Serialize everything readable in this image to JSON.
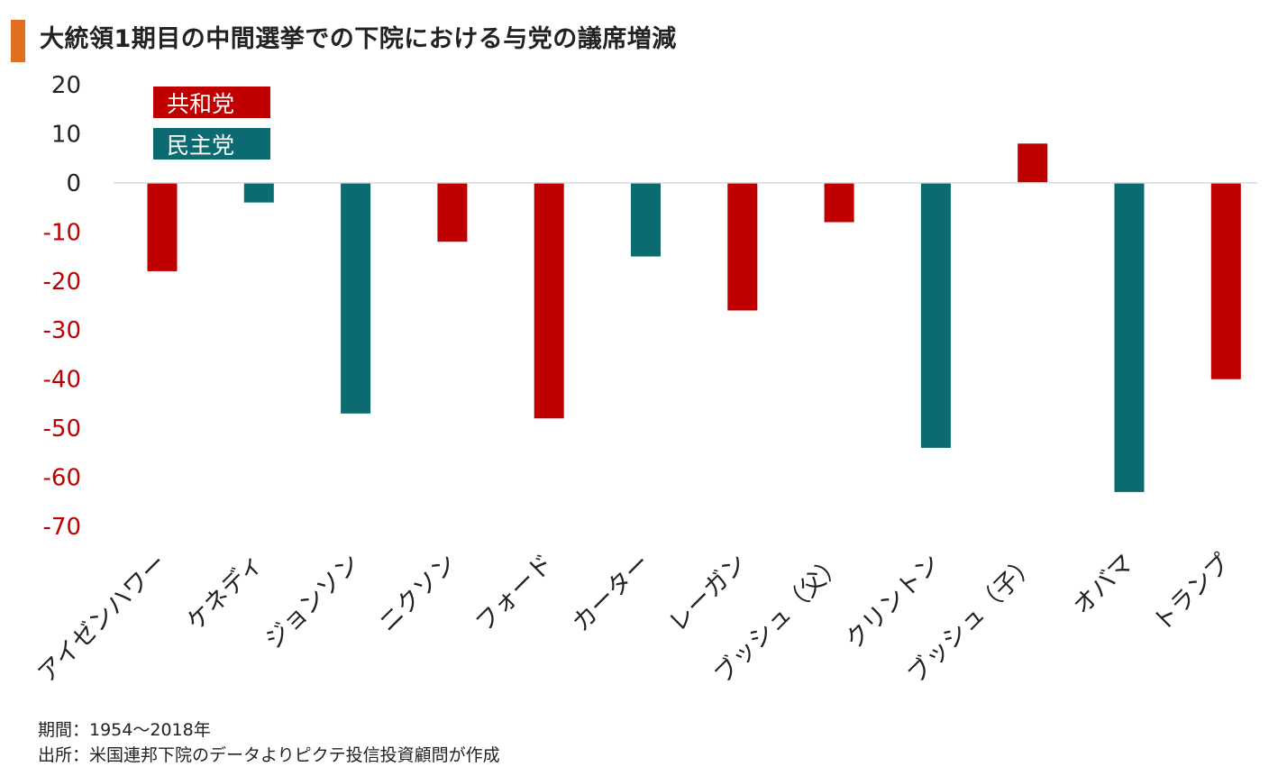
{
  "title": "大統領1期目の中間選挙での下院における与党の議席増減",
  "colors": {
    "republican": "#c00000",
    "democrat": "#0b6b70",
    "title_accent": "#e07020",
    "positive_tick": "#222222",
    "negative_tick": "#c00000",
    "axis_line": "#d9d9d9"
  },
  "footer": {
    "period": "期間：1954～2018年",
    "source": "出所：米国連邦下院のデータよりピクテ投信投資顧問が作成"
  },
  "chart_data": {
    "type": "bar",
    "title": "大統領1期目の中間選挙での下院における与党の議席増減",
    "xlabel": "",
    "ylabel": "",
    "ylim": [
      -70,
      20
    ],
    "yticks": [
      20,
      10,
      0,
      -10,
      -20,
      -30,
      -40,
      -50,
      -60,
      -70
    ],
    "grid": false,
    "legend_position": "top-left",
    "legend": [
      {
        "label": "共和党",
        "color": "#c00000"
      },
      {
        "label": "民主党",
        "color": "#0b6b70"
      }
    ],
    "categories": [
      "アイゼンハワー",
      "ケネディ",
      "ジョンソン",
      "ニクソン",
      "フォード",
      "カーター",
      "レーガン",
      "ブッシュ（父）",
      "クリントン",
      "ブッシュ（子）",
      "オバマ",
      "トランプ"
    ],
    "values": [
      -18,
      -4,
      -47,
      -12,
      -48,
      -15,
      -26,
      -8,
      -54,
      8,
      -63,
      -40
    ],
    "party": [
      "共和党",
      "民主党",
      "民主党",
      "共和党",
      "共和党",
      "民主党",
      "共和党",
      "共和党",
      "民主党",
      "共和党",
      "民主党",
      "共和党"
    ]
  }
}
